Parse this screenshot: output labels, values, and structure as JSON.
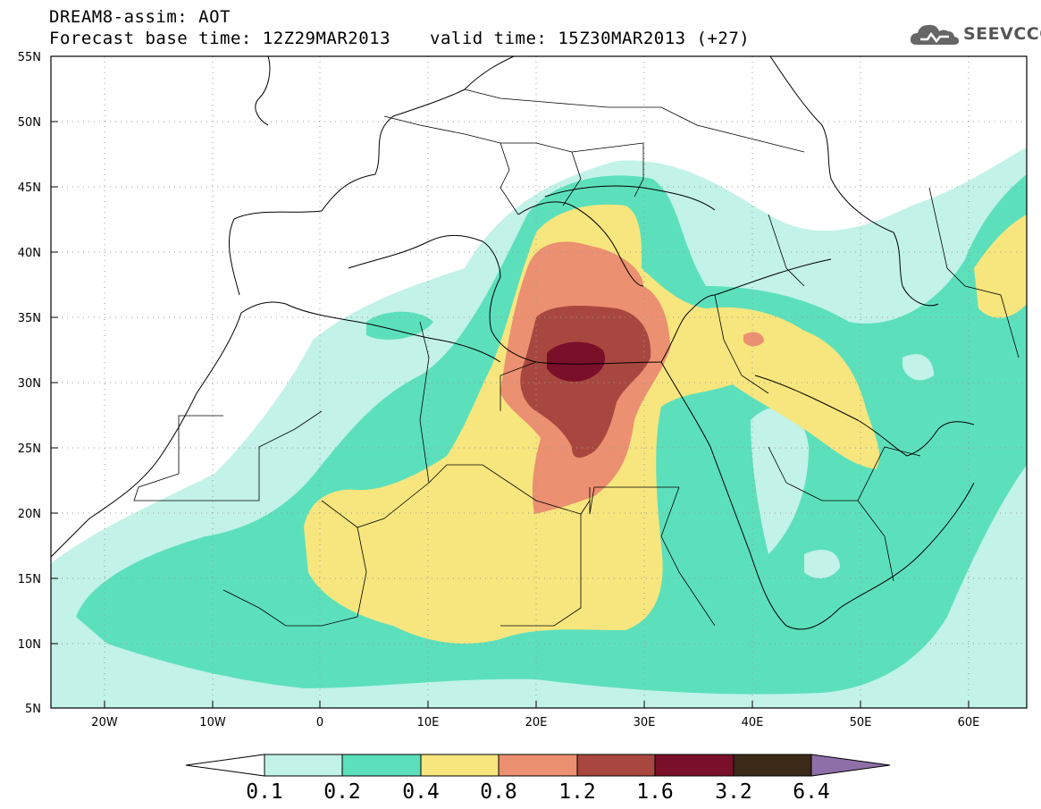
{
  "header": {
    "title_line1": "DREAM8-assim: AOT",
    "base_time": "Forecast base time: 12Z29MAR2013",
    "valid_time": "valid time: 15Z30MAR2013 (+27)",
    "logo_text": "SEEVCCC"
  },
  "map": {
    "lon_range": [
      -25,
      65
    ],
    "lat_range": [
      5,
      55
    ],
    "lat_ticks": [
      "55N",
      "50N",
      "45N",
      "40N",
      "35N",
      "30N",
      "25N",
      "20N",
      "15N",
      "10N",
      "5N"
    ],
    "lon_ticks": [
      "20W",
      "10W",
      "0",
      "10E",
      "20E",
      "30E",
      "40E",
      "50E",
      "60E"
    ],
    "gridlines": true,
    "gridline_style": "dotted"
  },
  "colorbar": {
    "labels": [
      "0.1",
      "0.2",
      "0.4",
      "0.8",
      "1.2",
      "1.6",
      "3.2",
      "6.4"
    ],
    "colors": [
      "#ffffff",
      "#c2f2e8",
      "#5ce0bb",
      "#f7e67e",
      "#eb9070",
      "#a8473f",
      "#7a0f2a",
      "#3a2a17",
      "#8f6fa8"
    ]
  }
}
